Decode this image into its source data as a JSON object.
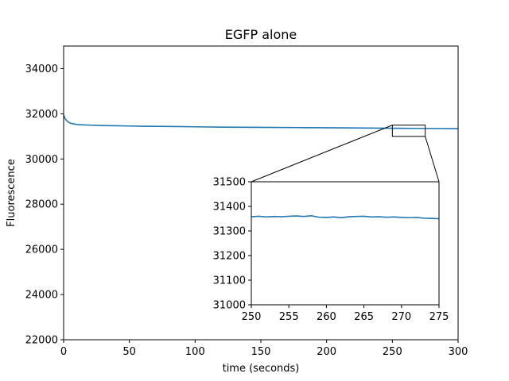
{
  "chart_data": [
    {
      "type": "line",
      "title": "EGFP alone",
      "xlabel": "time (seconds)",
      "ylabel": "Fluorescence",
      "xlim": [
        0,
        300
      ],
      "ylim": [
        22000,
        35000
      ],
      "xticks": [
        0,
        50,
        100,
        150,
        200,
        250,
        300
      ],
      "yticks": [
        22000,
        24000,
        26000,
        28000,
        30000,
        32000,
        34000
      ],
      "grid": false,
      "series": [
        {
          "color": "#1f77b4",
          "x": [
            0,
            1,
            2,
            3,
            4,
            5,
            6,
            8,
            10,
            12,
            15,
            20,
            25,
            30,
            40,
            50,
            60,
            80,
            100,
            120,
            150,
            180,
            200,
            220,
            250,
            270,
            300
          ],
          "y": [
            31950,
            31800,
            31720,
            31660,
            31620,
            31590,
            31570,
            31550,
            31530,
            31520,
            31510,
            31500,
            31490,
            31480,
            31470,
            31460,
            31450,
            31440,
            31425,
            31410,
            31400,
            31390,
            31385,
            31375,
            31360,
            31355,
            31345
          ]
        }
      ],
      "zoom_box": {
        "xlim": [
          250,
          275
        ],
        "ylim": [
          31000,
          31500
        ]
      }
    },
    {
      "type": "line",
      "inset": true,
      "xlim": [
        250,
        275
      ],
      "ylim": [
        31000,
        31500
      ],
      "xticks": [
        250,
        255,
        260,
        265,
        270,
        275
      ],
      "yticks": [
        31000,
        31100,
        31200,
        31300,
        31400,
        31500
      ],
      "series": [
        {
          "color": "#1f77b4",
          "x": [
            250,
            251,
            252,
            253,
            254,
            255,
            256,
            257,
            258,
            259,
            260,
            261,
            262,
            263,
            264,
            265,
            266,
            267,
            268,
            269,
            270,
            271,
            272,
            273,
            274,
            275
          ],
          "y": [
            31358,
            31360,
            31357,
            31359,
            31358,
            31360,
            31361,
            31359,
            31362,
            31356,
            31355,
            31357,
            31354,
            31358,
            31359,
            31360,
            31357,
            31358,
            31356,
            31357,
            31355,
            31354,
            31355,
            31352,
            31351,
            31350
          ]
        }
      ]
    }
  ]
}
